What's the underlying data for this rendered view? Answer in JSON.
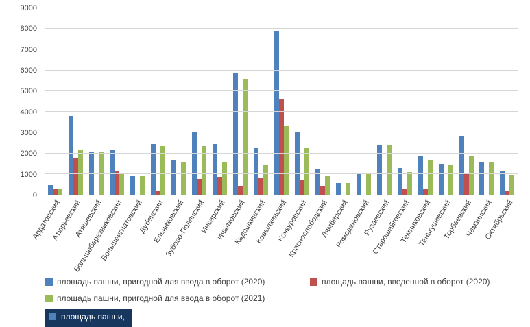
{
  "chart_data": {
    "type": "bar",
    "title": "",
    "xlabel": "",
    "ylabel": "",
    "ylim": [
      0,
      9000
    ],
    "ytick_step": 1000,
    "grid": true,
    "legend_position": "bottom",
    "categories": [
      "Ардатовский",
      "Атюрьевский",
      "Атяшевский",
      "Большеберезниковский",
      "Большеигнатовский",
      "Дубенский",
      "Ельниковский",
      "Зубово-Полянский",
      "Инсарский",
      "Ичалковский",
      "Кадошкинский",
      "Ковылкинский",
      "Кочкуровский",
      "Краснослободский",
      "Лямбирский",
      "Ромодановский",
      "Рузаевский",
      "Старошайговский",
      "Темниковский",
      "Теньгушевский",
      "Торбеевский",
      "Чамзинский",
      "Октябрьский"
    ],
    "series": [
      {
        "name": "площадь пашни, пригодной для ввода в оборот (2020)",
        "color": "#4f81bd",
        "values": [
          450,
          3800,
          2100,
          2150,
          900,
          2450,
          1650,
          3050,
          2450,
          5900,
          2250,
          7900,
          3000,
          1250,
          550,
          1000,
          2400,
          1300,
          1900,
          1500,
          2800,
          1600,
          1150
        ]
      },
      {
        "name": "площадь пашни, введенной  в оборот (2020)",
        "color": "#c0504d",
        "values": [
          250,
          1800,
          0,
          1150,
          0,
          150,
          0,
          750,
          850,
          400,
          800,
          4600,
          700,
          400,
          0,
          0,
          0,
          250,
          300,
          0,
          1000,
          0,
          150
        ]
      },
      {
        "name": "площадь пашни, пригодной для ввода в оборот (2021)",
        "color": "#9bbb59",
        "values": [
          300,
          2150,
          2100,
          1000,
          900,
          2350,
          1600,
          2350,
          1600,
          5600,
          1450,
          3300,
          2250,
          900,
          550,
          1000,
          2400,
          1100,
          1650,
          1450,
          1850,
          1550,
          950
        ]
      }
    ]
  },
  "legend": {
    "items": [
      {
        "label": "площадь пашни, пригодной для ввода в оборот (2020)",
        "color": "#4f81bd",
        "column": "left"
      },
      {
        "label": "площадь пашни, введенной  в оборот (2020)",
        "color": "#c0504d",
        "column": "right"
      },
      {
        "label": "площадь пашни, пригодной для ввода в оборот (2021)",
        "color": "#9bbb59",
        "column": "left"
      }
    ]
  },
  "badge": {
    "label": "площадь пашни,",
    "background": "#17375e",
    "square_color": "#4f81bd"
  }
}
